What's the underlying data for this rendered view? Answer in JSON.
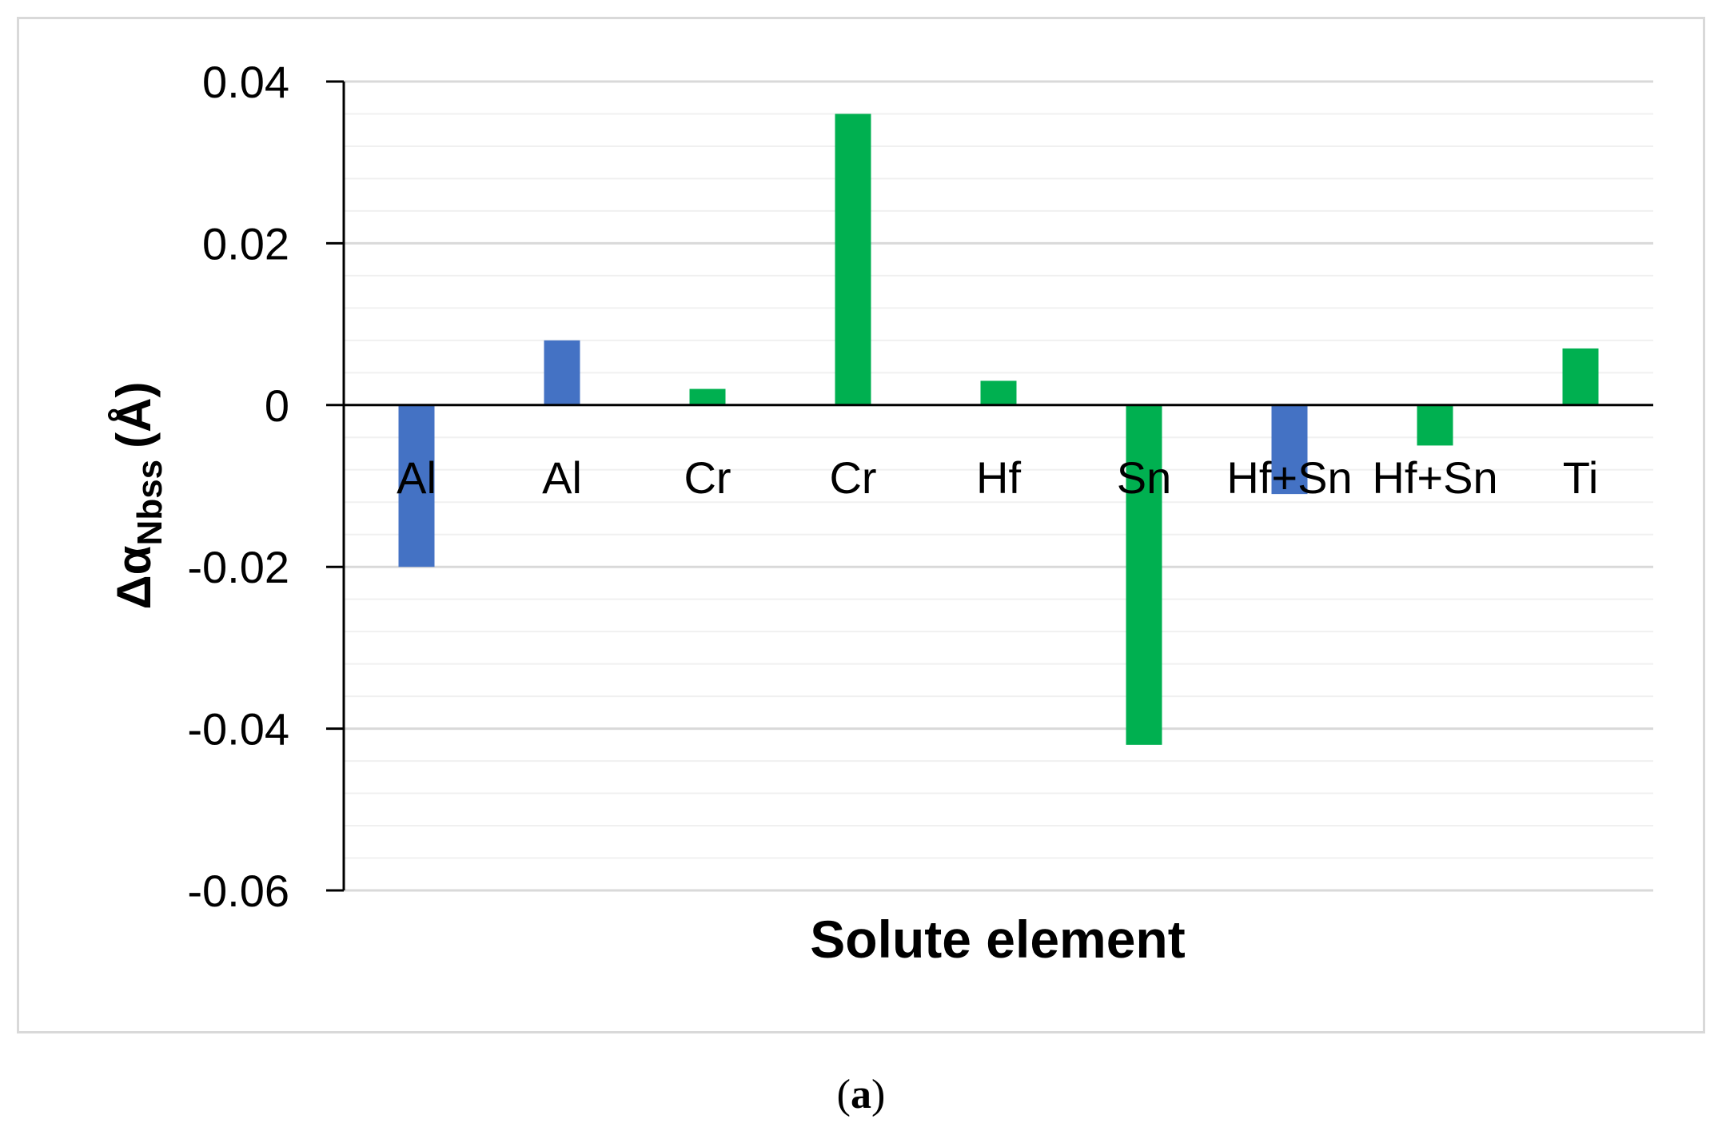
{
  "chart_data": {
    "type": "bar",
    "categories": [
      "Al",
      "Al",
      "Cr",
      "Cr",
      "Hf",
      "Sn",
      "Hf+Sn",
      "Hf+Sn",
      "Ti"
    ],
    "values": [
      -0.02,
      0.008,
      0.002,
      0.036,
      0.003,
      -0.042,
      -0.011,
      -0.005,
      0.007
    ],
    "bar_colors": [
      "#4472c4",
      "#4472c4",
      "#00b050",
      "#00b050",
      "#00b050",
      "#00b050",
      "#4472c4",
      "#00b050",
      "#00b050"
    ],
    "xlabel": "Solute element",
    "ylabel": {
      "main": "Δα",
      "subscript": "Nbss",
      "unit": "(Å)"
    },
    "ylim": [
      -0.06,
      0.04
    ],
    "yticks": [
      "0.04",
      "0.02",
      "0",
      "-0.02",
      "-0.04",
      "-0.06"
    ],
    "grid": "horizontal major and minor gridlines",
    "legend": "none"
  },
  "caption": {
    "open": "(",
    "letter": "a",
    "close": ")"
  }
}
